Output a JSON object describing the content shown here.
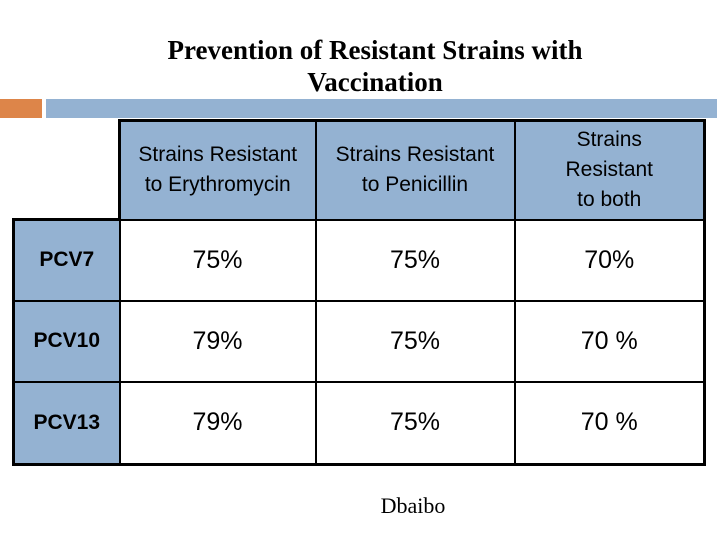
{
  "title": "Prevention of Resistant Strains with\nVaccination",
  "colors": {
    "accent_orange": "#dd8549",
    "accent_blue": "#94b2d2"
  },
  "table": {
    "columns": [
      "Strains Resistant\nto Erythromycin",
      "Strains Resistant\nto Penicillin",
      "Strains\nResistant\nto both"
    ],
    "rows": [
      {
        "label": "PCV7",
        "values": [
          "75%",
          "75%",
          "70%"
        ]
      },
      {
        "label": "PCV10",
        "values": [
          "79%",
          "75%",
          "70 %"
        ]
      },
      {
        "label": "PCV13",
        "values": [
          "79%",
          "75%",
          "70 %"
        ]
      }
    ]
  },
  "footer": {
    "credit": "Dbaibo"
  }
}
